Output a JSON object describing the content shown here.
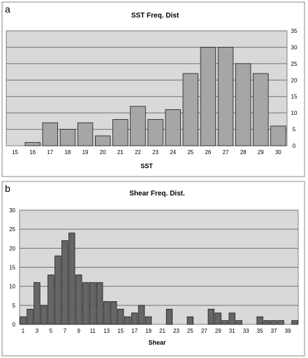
{
  "chart_data": [
    {
      "panel_label": "a",
      "type": "bar",
      "title": "SST Freq. Dist",
      "xlabel": "SST",
      "ylabel": "",
      "categories": [
        "15",
        "16",
        "17",
        "18",
        "19",
        "20",
        "21",
        "22",
        "23",
        "24",
        "25",
        "26",
        "27",
        "28",
        "29",
        "30"
      ],
      "values": [
        0,
        1,
        7,
        5,
        7,
        3,
        8,
        12,
        8,
        11,
        22,
        30,
        30,
        25,
        22,
        6
      ],
      "ylim": [
        0,
        35
      ],
      "yticks": [
        "0",
        "5",
        "10",
        "15",
        "20",
        "25",
        "30",
        "35"
      ],
      "y_axis_side": "right",
      "grid": true,
      "bar_color": "#a6a6a6",
      "plot_bg": "#d9d9d9"
    },
    {
      "panel_label": "b",
      "type": "bar",
      "title": "Shear Freq. Dist.",
      "xlabel": "Shear",
      "ylabel": "",
      "categories": [
        "1",
        "2",
        "3",
        "4",
        "5",
        "6",
        "7",
        "8",
        "9",
        "10",
        "11",
        "12",
        "13",
        "14",
        "15",
        "16",
        "17",
        "18",
        "19",
        "20",
        "21",
        "22",
        "23",
        "24",
        "25",
        "26",
        "27",
        "28",
        "29",
        "30",
        "31",
        "32",
        "33",
        "34",
        "35",
        "36",
        "37",
        "38",
        "39",
        "40"
      ],
      "tick_labels": [
        "1",
        "3",
        "5",
        "7",
        "9",
        "11",
        "13",
        "15",
        "17",
        "19",
        "21",
        "23",
        "25",
        "27",
        "29",
        "31",
        "33",
        "35",
        "37",
        "39"
      ],
      "values": [
        2,
        4,
        11,
        5,
        13,
        18,
        22,
        24,
        13,
        11,
        11,
        11,
        6,
        6,
        4,
        2,
        3,
        5,
        2,
        0,
        0,
        4,
        0,
        0,
        2,
        0,
        0,
        4,
        3,
        1,
        3,
        1,
        0,
        0,
        2,
        1,
        1,
        1,
        0,
        1
      ],
      "ylim": [
        0,
        30
      ],
      "yticks": [
        "0",
        "5",
        "10",
        "15",
        "20",
        "25",
        "30"
      ],
      "y_axis_side": "left",
      "grid": true,
      "bar_color": "#666666",
      "plot_bg": "#d9d9d9"
    }
  ]
}
